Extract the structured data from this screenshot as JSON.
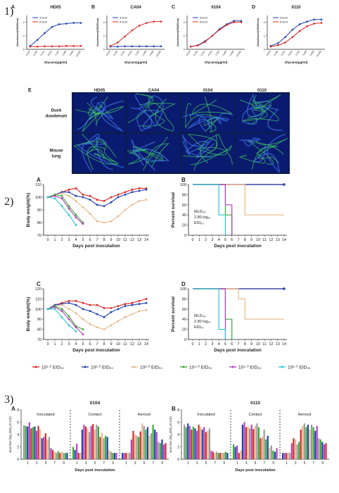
{
  "sections": [
    "1)",
    "2)",
    "3)"
  ],
  "colors": {
    "red": "#d62728",
    "blue": "#1f3fae",
    "tan": "#e8b98a",
    "green": "#3aaa35",
    "magenta": "#b33fbf",
    "cyan": "#2ec5d8",
    "dark": "#222222",
    "gray": "#999999"
  },
  "sec1": {
    "x_ticks": [
      "0.078",
      "0.156",
      "0.312",
      "0.625",
      "1.250",
      "2.500",
      "5.000",
      "10.000"
    ],
    "xlabel": "Glycans(μg/ml)",
    "ylabel": "Absorbance(OD450nm)",
    "legend": [
      "3'SLN",
      "6'SLN"
    ]
  },
  "sec1E": {
    "letter": "E",
    "columns": [
      "HD05",
      "CA04",
      "0104",
      "0110"
    ],
    "rows": [
      "Duck duodenum",
      "Mouse lung"
    ]
  },
  "sec2": {
    "xlabel": "Days post inoculation",
    "weight_ylabel": "Body weight(%)",
    "survival_ylabel": "Percent survival",
    "mld_text": [
      "MLD₅₀:",
      "2.80 log₁₀",
      "EID₅₀"
    ],
    "legend": [
      "10¹·⁰ EID₅₀",
      "10²·⁰ EID₅₀",
      "10³·⁰ EID₅₀",
      "10⁴·⁰ EID₅₀",
      "10⁵·⁰ EID₅₀",
      "10⁶·⁰ EID₅₀"
    ]
  },
  "sec3": {
    "ylabel": "virus titer (log₁₀EID₅₀/0.1ml)",
    "xlabel": "Days post inoculation",
    "groups": [
      "Inoculated",
      "Contact",
      "Aerosol"
    ],
    "x_ticks": [
      "1",
      "3",
      "5",
      "7",
      "9"
    ]
  },
  "chart_data": [
    {
      "letter": "A",
      "title": "HD05",
      "type": "line",
      "x": [
        "0.078",
        "0.156",
        "0.312",
        "0.625",
        "1.250",
        "2.500",
        "5.000",
        "10.000"
      ],
      "ylim": [
        0,
        2.5
      ],
      "series": [
        {
          "name": "3'SLN",
          "color": "blue",
          "values": [
            0.25,
            0.7,
            1.2,
            1.65,
            1.85,
            1.9,
            1.95,
            1.95
          ]
        },
        {
          "name": "6'SLN",
          "color": "red",
          "values": [
            0.2,
            0.2,
            0.22,
            0.22,
            0.22,
            0.25,
            0.25,
            0.25
          ]
        }
      ]
    },
    {
      "letter": "B",
      "title": "CA04",
      "type": "line",
      "x": [
        "0.078",
        "0.156",
        "0.312",
        "0.625",
        "1.250",
        "2.500",
        "5.000",
        "10.000"
      ],
      "ylim": [
        0,
        2.5
      ],
      "series": [
        {
          "name": "3'SLN",
          "color": "blue",
          "values": [
            0.2,
            0.2,
            0.22,
            0.22,
            0.22,
            0.22,
            0.22,
            0.22
          ]
        },
        {
          "name": "6'SLN",
          "color": "red",
          "values": [
            0.25,
            0.5,
            0.95,
            1.4,
            1.75,
            1.95,
            2.05,
            2.05
          ]
        }
      ]
    },
    {
      "letter": "C",
      "title": "0104",
      "type": "line",
      "x": [
        "0.078",
        "0.156",
        "0.312",
        "0.625",
        "1.250",
        "2.500",
        "5.000",
        "10.000"
      ],
      "ylim": [
        0,
        2.5
      ],
      "series": [
        {
          "name": "3'SLN",
          "color": "blue",
          "values": [
            0.2,
            0.3,
            0.6,
            1.0,
            1.5,
            1.85,
            2.1,
            2.1
          ]
        },
        {
          "name": "6'SLN",
          "color": "red",
          "values": [
            0.2,
            0.28,
            0.55,
            1.0,
            1.45,
            1.8,
            2.0,
            2.0
          ]
        }
      ]
    },
    {
      "letter": "D",
      "title": "0110",
      "type": "line",
      "x": [
        "0.078",
        "0.156",
        "0.312",
        "0.625",
        "1.250",
        "2.500",
        "5.000",
        "10.000"
      ],
      "ylim": [
        0,
        2.5
      ],
      "series": [
        {
          "name": "3'SLN",
          "color": "blue",
          "values": [
            0.25,
            0.45,
            0.9,
            1.45,
            1.85,
            2.05,
            2.2,
            2.2
          ]
        },
        {
          "name": "6'SLN",
          "color": "red",
          "values": [
            0.2,
            0.3,
            0.5,
            0.9,
            1.35,
            1.7,
            1.9,
            1.95
          ]
        }
      ]
    },
    {
      "letter": "A",
      "type": "line",
      "x": [
        0,
        1,
        2,
        3,
        4,
        5,
        6,
        7,
        8,
        9,
        10,
        11,
        12,
        13,
        14
      ],
      "ylim": [
        70,
        110
      ],
      "yticks": [
        70,
        80,
        90,
        100,
        110
      ],
      "series": [
        {
          "color": "red",
          "values": [
            100,
            102,
            104,
            106,
            107,
            102,
            101,
            98,
            97,
            100,
            102,
            104,
            106,
            107,
            107
          ]
        },
        {
          "color": "blue",
          "values": [
            100,
            102,
            104,
            104,
            101,
            100,
            98,
            94,
            93,
            96,
            100,
            102,
            104,
            105,
            106
          ]
        },
        {
          "color": "tan",
          "values": [
            100,
            102,
            103,
            101,
            97,
            92,
            87,
            81,
            80,
            81,
            85,
            90,
            94,
            97,
            98
          ]
        },
        {
          "color": "green",
          "values": [
            100,
            102,
            101,
            93,
            86,
            80,
            null,
            null,
            null,
            null,
            null,
            null,
            null,
            null,
            null
          ]
        },
        {
          "color": "magenta",
          "values": [
            100,
            101,
            99,
            91,
            84,
            79,
            null,
            null,
            null,
            null,
            null,
            null,
            null,
            null,
            null
          ]
        },
        {
          "color": "cyan",
          "values": [
            100,
            99,
            93,
            86,
            78,
            null,
            null,
            null,
            null,
            null,
            null,
            null,
            null,
            null,
            null
          ]
        }
      ]
    },
    {
      "letter": "B",
      "type": "line",
      "x": [
        0,
        1,
        2,
        3,
        4,
        5,
        6,
        7,
        8,
        9,
        10,
        11,
        12,
        13,
        14
      ],
      "ylim": [
        0,
        100
      ],
      "yticks": [
        0,
        20,
        40,
        60,
        80,
        100
      ],
      "series": [
        {
          "color": "red",
          "values": [
            100,
            100,
            100,
            100,
            100,
            100,
            100,
            100,
            100,
            100,
            100,
            100,
            100,
            100,
            100
          ]
        },
        {
          "color": "blue",
          "values": [
            100,
            100,
            100,
            100,
            100,
            100,
            100,
            100,
            100,
            100,
            100,
            100,
            100,
            100,
            100
          ]
        },
        {
          "color": "tan",
          "values": [
            100,
            100,
            100,
            100,
            100,
            100,
            100,
            100,
            40,
            40,
            40,
            40,
            40,
            40,
            40
          ]
        },
        {
          "color": "green",
          "values": [
            100,
            100,
            100,
            100,
            100,
            40,
            0,
            null,
            null,
            null,
            null,
            null,
            null,
            null,
            null
          ]
        },
        {
          "color": "magenta",
          "values": [
            100,
            100,
            100,
            100,
            100,
            60,
            0,
            null,
            null,
            null,
            null,
            null,
            null,
            null,
            null
          ]
        },
        {
          "color": "cyan",
          "values": [
            100,
            100,
            100,
            100,
            40,
            0,
            null,
            null,
            null,
            null,
            null,
            null,
            null,
            null,
            null
          ]
        }
      ]
    },
    {
      "letter": "C",
      "type": "line",
      "x": [
        0,
        1,
        2,
        3,
        4,
        5,
        6,
        7,
        8,
        9,
        10,
        11,
        12,
        13,
        14
      ],
      "ylim": [
        70,
        120
      ],
      "yticks": [
        70,
        80,
        90,
        100,
        110,
        120
      ],
      "series": [
        {
          "color": "red",
          "values": [
            100,
            104,
            106,
            108,
            108,
            106,
            104,
            104,
            101,
            101,
            103,
            105,
            106,
            108,
            110
          ]
        },
        {
          "color": "blue",
          "values": [
            100,
            104,
            105,
            106,
            104,
            100,
            98,
            95,
            92,
            97,
            100,
            103,
            104,
            105,
            106
          ]
        },
        {
          "color": "tan",
          "values": [
            100,
            103,
            104,
            100,
            96,
            90,
            85,
            82,
            80,
            84,
            88,
            92,
            95,
            98,
            99
          ]
        },
        {
          "color": "green",
          "values": [
            100,
            103,
            100,
            93,
            83,
            80,
            null,
            null,
            null,
            null,
            null,
            null,
            null,
            null,
            null
          ]
        },
        {
          "color": "magenta",
          "values": [
            100,
            102,
            98,
            90,
            82,
            75,
            null,
            null,
            null,
            null,
            null,
            null,
            null,
            null,
            null
          ]
        },
        {
          "color": "cyan",
          "values": [
            100,
            100,
            92,
            84,
            78,
            null,
            null,
            null,
            null,
            null,
            null,
            null,
            null,
            null,
            null
          ]
        }
      ]
    },
    {
      "letter": "D",
      "type": "line",
      "x": [
        0,
        1,
        2,
        3,
        4,
        5,
        6,
        7,
        8,
        9,
        10,
        11,
        12,
        13,
        14
      ],
      "ylim": [
        0,
        100
      ],
      "yticks": [
        0,
        20,
        40,
        60,
        80,
        100
      ],
      "series": [
        {
          "color": "red",
          "values": [
            100,
            100,
            100,
            100,
            100,
            100,
            100,
            100,
            100,
            100,
            100,
            100,
            100,
            100,
            100
          ]
        },
        {
          "color": "blue",
          "values": [
            100,
            100,
            100,
            100,
            100,
            100,
            100,
            100,
            100,
            100,
            100,
            100,
            100,
            100,
            100
          ]
        },
        {
          "color": "tan",
          "values": [
            100,
            100,
            100,
            100,
            100,
            100,
            100,
            80,
            40,
            40,
            40,
            40,
            40,
            40,
            40
          ]
        },
        {
          "color": "green",
          "values": [
            100,
            100,
            100,
            100,
            100,
            40,
            0,
            null,
            null,
            null,
            null,
            null,
            null,
            null,
            null
          ]
        },
        {
          "color": "magenta",
          "values": [
            100,
            100,
            100,
            100,
            100,
            0,
            null,
            null,
            null,
            null,
            null,
            null,
            null,
            null,
            null
          ]
        },
        {
          "color": "cyan",
          "values": [
            100,
            100,
            100,
            100,
            20,
            0,
            null,
            null,
            null,
            null,
            null,
            null,
            null,
            null,
            null
          ]
        }
      ]
    },
    {
      "letter": "A",
      "title": "0104",
      "type": "bar",
      "ylim": [
        0,
        8
      ],
      "yticks": [
        0,
        2,
        4,
        6,
        8
      ],
      "colors": [
        "gray",
        "green",
        "blue",
        "magenta",
        "red",
        "tan"
      ],
      "groups": [
        {
          "name": "Inoculated",
          "days": [
            [
              5.5,
              5.4,
              5.3,
              6,
              5
            ],
            [
              5.2,
              5.3,
              4.6,
              5.4,
              4.8
            ],
            [
              3.4,
              3.6,
              4.2,
              3.2,
              3.6
            ],
            [
              1.8,
              1.5,
              1.2,
              1.0,
              1.3
            ],
            [
              1,
              1.2,
              1,
              1,
              1
            ]
          ]
        },
        {
          "name": "Contact",
          "days": [
            [
              2,
              1.5,
              2.5,
              1,
              1
            ],
            [
              4.8,
              5.6,
              5.3,
              5,
              4.4
            ],
            [
              5.4,
              5.7,
              4.8,
              5.6,
              5.3
            ],
            [
              3.6,
              4.3,
              3.4,
              3.8,
              3.6
            ],
            [
              1.5,
              1.2,
              1,
              1,
              1
            ]
          ]
        },
        {
          "name": "Aerosol",
          "days": [
            [
              1,
              1,
              1,
              1,
              1
            ],
            [
              3.2,
              4.6,
              4,
              3.8,
              3.6
            ],
            [
              4.5,
              5.8,
              5.4,
              4.8,
              5.2
            ],
            [
              3.8,
              4.2,
              5.6,
              4.8,
              4.4
            ],
            [
              2.8,
              2.6,
              3.2,
              2.4,
              2.6
            ]
          ]
        }
      ]
    },
    {
      "letter": "B",
      "title": "0110",
      "type": "bar",
      "ylim": [
        0,
        8
      ],
      "yticks": [
        0,
        2,
        4,
        6,
        8
      ],
      "colors": [
        "gray",
        "green",
        "blue",
        "magenta",
        "red",
        "tan"
      ],
      "groups": [
        {
          "name": "Inoculated",
          "days": [
            [
              5.6,
              5.2,
              5.8,
              5.4,
              4.8
            ],
            [
              5.3,
              5.0,
              4.6,
              5.6,
              5.2
            ],
            [
              4.8,
              5.2,
              4.4,
              4.6,
              5
            ],
            [
              1.4,
              1.2,
              1,
              1.2,
              1
            ],
            [
              1,
              1,
              1,
              1.2,
              1
            ]
          ]
        },
        {
          "name": "Contact",
          "days": [
            [
              2.4,
              2,
              2.2,
              1,
              1.4
            ],
            [
              5.6,
              6,
              5.2,
              5.4,
              5
            ],
            [
              5.6,
              4.9,
              5.4,
              5.8,
              5.2
            ],
            [
              3.4,
              3.6,
              4.8,
              3.2,
              3.8
            ],
            [
              1.8,
              2.2,
              1.4,
              1.2,
              1.8
            ]
          ]
        },
        {
          "name": "Aerosol",
          "days": [
            [
              1,
              1,
              1,
              1,
              1
            ],
            [
              2.6,
              3.4,
              3.2,
              2.4,
              2.8
            ],
            [
              4.8,
              5.4,
              5.8,
              5.2,
              5.6
            ],
            [
              4.8,
              5.6,
              5.2,
              4.6,
              5.4
            ],
            [
              3.4,
              3.2,
              2.8,
              2.4,
              2.6
            ]
          ]
        }
      ]
    }
  ]
}
